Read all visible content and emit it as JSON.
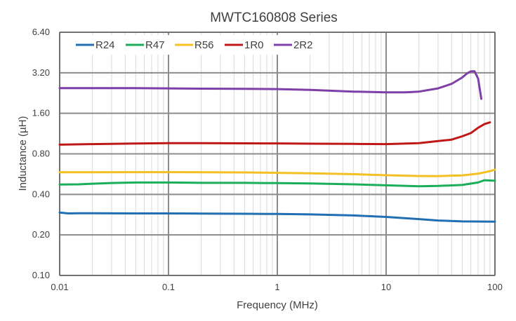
{
  "chart_data": {
    "type": "line",
    "title": "MWTC160808 Series",
    "xlabel": "Frequency (MHz)",
    "ylabel": "Inductance (µH)",
    "x_scale": "log",
    "y_scale": "log",
    "xlim": [
      0.01,
      100
    ],
    "ylim": [
      0.1,
      6.4
    ],
    "x_ticks": [
      "0.01",
      "0.1",
      "1",
      "10",
      "100"
    ],
    "y_ticks": [
      "0.10",
      "0.20",
      "0.40",
      "0.80",
      "1.60",
      "3.20",
      "6.40"
    ],
    "grid": true,
    "legend_position": "top-left",
    "series": [
      {
        "name": "R24",
        "color": "#1f6fb2",
        "x": [
          0.01,
          0.012,
          0.015,
          0.02,
          0.05,
          0.1,
          0.2,
          0.5,
          1,
          2,
          5,
          10,
          20,
          30,
          50,
          100
        ],
        "y": [
          0.293,
          0.289,
          0.29,
          0.29,
          0.289,
          0.289,
          0.288,
          0.287,
          0.286,
          0.284,
          0.279,
          0.272,
          0.262,
          0.256,
          0.252,
          0.251
        ]
      },
      {
        "name": "R47",
        "color": "#1aae5a",
        "x": [
          0.01,
          0.015,
          0.02,
          0.03,
          0.05,
          0.1,
          0.2,
          0.5,
          1,
          2,
          5,
          10,
          20,
          30,
          50,
          70,
          80,
          100
        ],
        "y": [
          0.474,
          0.475,
          0.48,
          0.486,
          0.49,
          0.49,
          0.487,
          0.487,
          0.485,
          0.482,
          0.475,
          0.467,
          0.46,
          0.462,
          0.47,
          0.49,
          0.51,
          0.505
        ]
      },
      {
        "name": "R56",
        "color": "#f5c022",
        "x": [
          0.01,
          0.05,
          0.1,
          0.2,
          0.5,
          1,
          2,
          5,
          10,
          20,
          30,
          50,
          70,
          90,
          100
        ],
        "y": [
          0.584,
          0.585,
          0.585,
          0.584,
          0.582,
          0.578,
          0.573,
          0.565,
          0.555,
          0.548,
          0.547,
          0.553,
          0.57,
          0.595,
          0.61
        ]
      },
      {
        "name": "1R0",
        "color": "#c01818",
        "x": [
          0.01,
          0.02,
          0.05,
          0.1,
          0.2,
          0.5,
          1,
          2,
          5,
          10,
          20,
          30,
          40,
          50,
          60,
          70,
          80,
          90
        ],
        "y": [
          0.936,
          0.945,
          0.955,
          0.96,
          0.96,
          0.958,
          0.956,
          0.952,
          0.948,
          0.945,
          0.96,
          0.995,
          1.02,
          1.08,
          1.14,
          1.25,
          1.33,
          1.37
        ]
      },
      {
        "name": "2R2",
        "color": "#7f3fa8",
        "x": [
          0.01,
          0.05,
          0.1,
          0.2,
          0.5,
          1,
          2,
          5,
          10,
          15,
          20,
          30,
          40,
          50,
          55,
          60,
          65,
          70,
          75
        ],
        "y": [
          2.46,
          2.46,
          2.45,
          2.44,
          2.43,
          2.42,
          2.39,
          2.32,
          2.29,
          2.29,
          2.32,
          2.45,
          2.65,
          2.95,
          3.15,
          3.28,
          3.28,
          2.9,
          2.05
        ]
      }
    ]
  }
}
